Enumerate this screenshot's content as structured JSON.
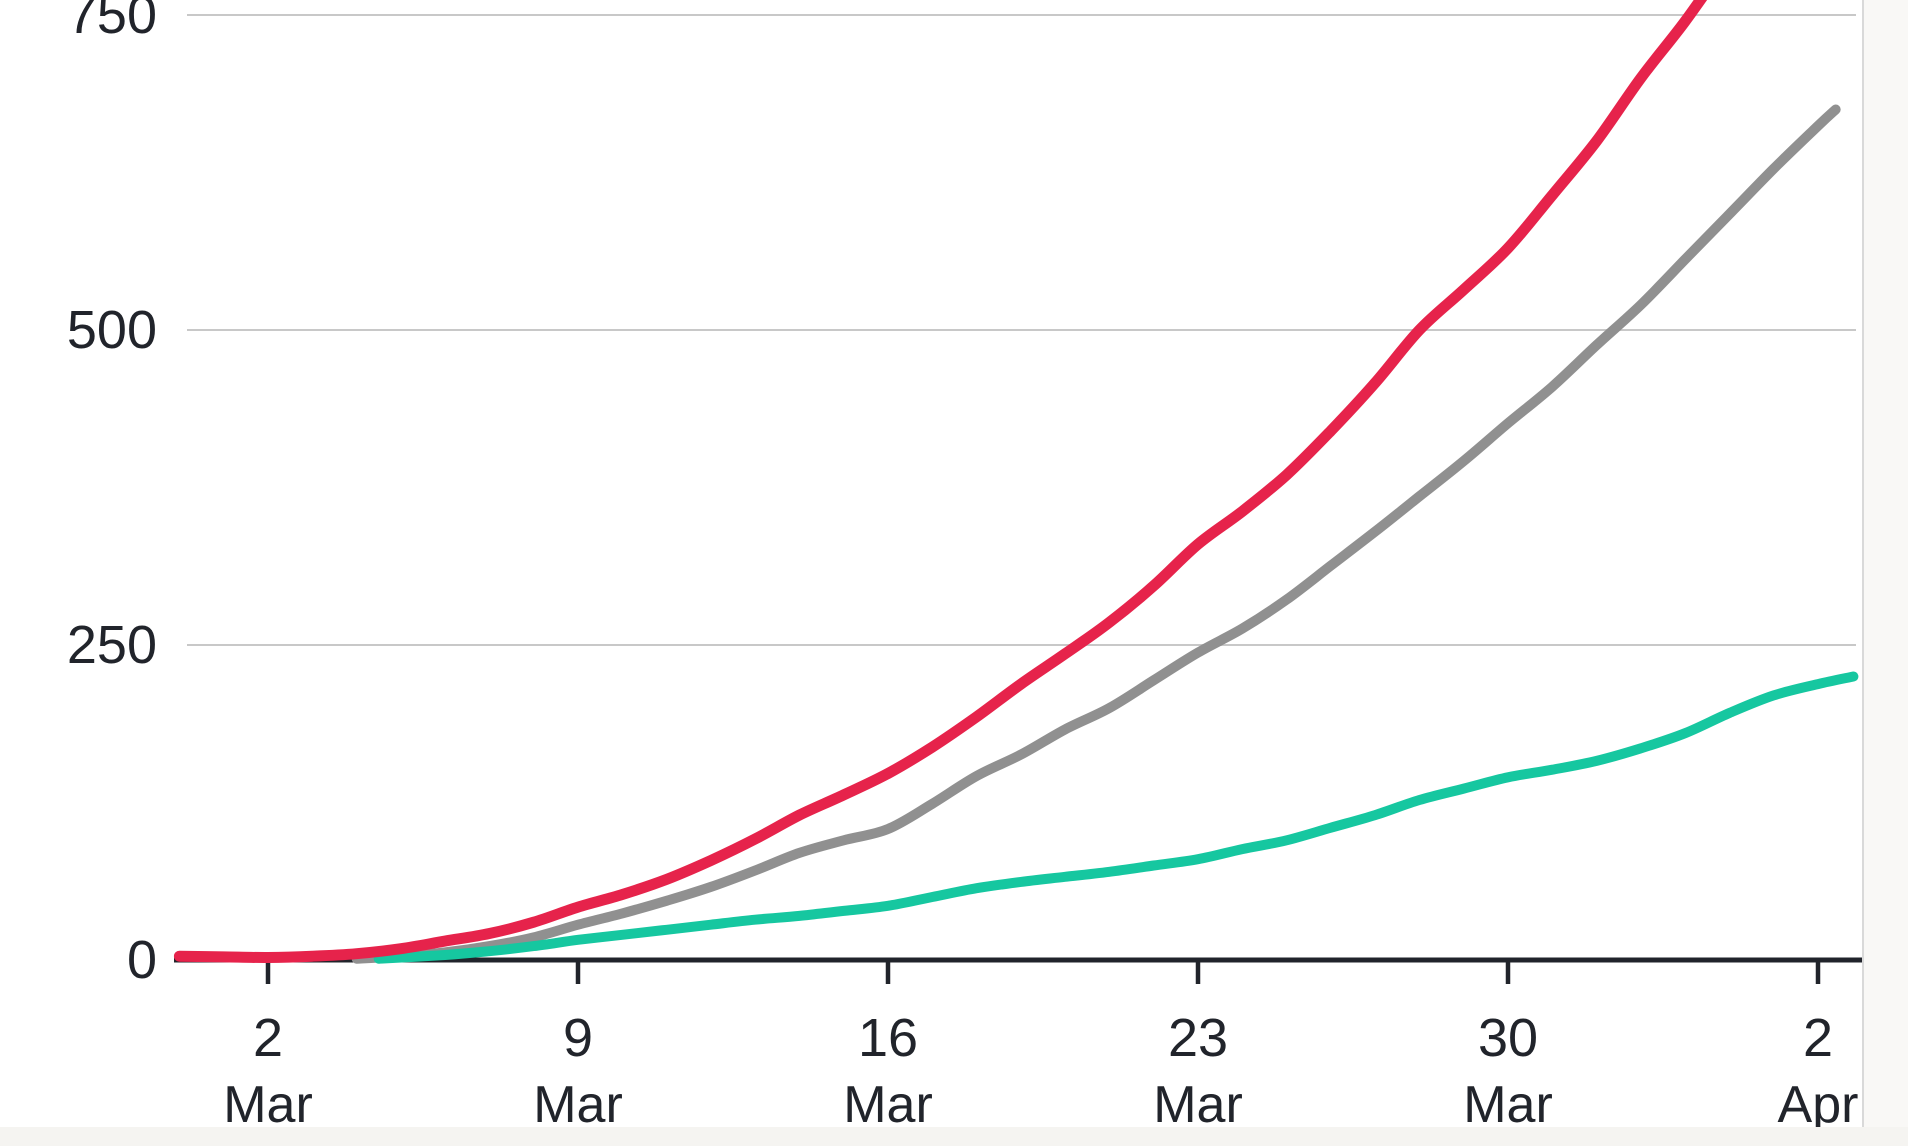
{
  "page": {
    "background_color": "#ffffff",
    "bottom_strip_color": "#f5f4f1",
    "right_strip_color": "#f9f8f6",
    "right_strip_border_color": "#d9d9d9"
  },
  "chart_data": {
    "type": "line",
    "title": "",
    "xlabel": "",
    "ylabel": "",
    "grid": "horizontal",
    "legend": "none (cropped out of view)",
    "x_axis": {
      "unit": "days since first labeled tick (2 Mar)",
      "tick_unit_positions": [
        0,
        7,
        14,
        21,
        28,
        35
      ],
      "tick_labels": [
        {
          "day": "2",
          "month": "Mar"
        },
        {
          "day": "9",
          "month": "Mar"
        },
        {
          "day": "16",
          "month": "Mar"
        },
        {
          "day": "23",
          "month": "Mar"
        },
        {
          "day": "30",
          "month": "Mar"
        },
        {
          "day": "2",
          "month": "Apr"
        }
      ]
    },
    "y_axis": {
      "tick_values": [
        0,
        250,
        500,
        750
      ],
      "tick_labels": [
        "0",
        "250",
        "500",
        "750"
      ],
      "visible_value_range": [
        0,
        762
      ]
    },
    "series": [
      {
        "name": "grey",
        "color": "#909090",
        "stroke_width": 10,
        "points": [
          [
            2,
            1
          ],
          [
            3,
            3
          ],
          [
            4,
            6
          ],
          [
            5,
            11
          ],
          [
            6,
            18
          ],
          [
            7,
            28
          ],
          [
            8,
            37
          ],
          [
            9,
            47
          ],
          [
            10,
            58
          ],
          [
            11,
            71
          ],
          [
            12,
            85
          ],
          [
            13,
            95
          ],
          [
            14,
            104
          ],
          [
            15,
            124
          ],
          [
            16,
            146
          ],
          [
            17,
            163
          ],
          [
            18,
            183
          ],
          [
            19,
            200
          ],
          [
            20,
            222
          ],
          [
            21,
            244
          ],
          [
            22,
            263
          ],
          [
            23,
            286
          ],
          [
            24,
            313
          ],
          [
            25,
            340
          ],
          [
            26,
            368
          ],
          [
            27,
            396
          ],
          [
            28,
            426
          ],
          [
            29,
            455
          ],
          [
            30,
            488
          ],
          [
            31,
            520
          ],
          [
            32,
            556
          ],
          [
            33,
            592
          ],
          [
            34,
            628
          ],
          [
            35,
            662
          ],
          [
            35.4,
            675
          ]
        ]
      },
      {
        "name": "teal",
        "color": "#16c7a0",
        "stroke_width": 10,
        "points": [
          [
            2.5,
            1
          ],
          [
            4,
            4
          ],
          [
            5,
            7
          ],
          [
            6,
            11
          ],
          [
            7,
            16
          ],
          [
            8,
            20
          ],
          [
            9,
            24
          ],
          [
            10,
            28
          ],
          [
            11,
            32
          ],
          [
            12,
            35
          ],
          [
            13,
            39
          ],
          [
            14,
            43
          ],
          [
            15,
            50
          ],
          [
            16,
            57
          ],
          [
            17,
            62
          ],
          [
            18,
            66
          ],
          [
            19,
            70
          ],
          [
            20,
            75
          ],
          [
            21,
            80
          ],
          [
            22,
            88
          ],
          [
            23,
            95
          ],
          [
            24,
            105
          ],
          [
            25,
            115
          ],
          [
            26,
            127
          ],
          [
            27,
            136
          ],
          [
            28,
            145
          ],
          [
            29,
            151
          ],
          [
            30,
            158
          ],
          [
            31,
            168
          ],
          [
            32,
            180
          ],
          [
            33,
            196
          ],
          [
            34,
            210
          ],
          [
            35,
            219
          ],
          [
            35.8,
            225
          ]
        ]
      },
      {
        "name": "red",
        "color": "#e6234b",
        "stroke_width": 11,
        "points": [
          [
            -2,
            3
          ],
          [
            -1,
            2.5
          ],
          [
            0,
            2
          ],
          [
            1,
            3
          ],
          [
            2,
            5
          ],
          [
            3,
            9
          ],
          [
            4,
            15
          ],
          [
            5,
            21
          ],
          [
            6,
            30
          ],
          [
            7,
            42
          ],
          [
            8,
            52
          ],
          [
            9,
            64
          ],
          [
            10,
            79
          ],
          [
            11,
            96
          ],
          [
            12,
            115
          ],
          [
            13,
            131
          ],
          [
            14,
            148
          ],
          [
            15,
            169
          ],
          [
            16,
            193
          ],
          [
            17,
            219
          ],
          [
            18,
            243
          ],
          [
            19,
            268
          ],
          [
            20,
            297
          ],
          [
            21,
            330
          ],
          [
            22,
            356
          ],
          [
            23,
            385
          ],
          [
            24,
            420
          ],
          [
            25,
            458
          ],
          [
            26,
            500
          ],
          [
            27,
            532
          ],
          [
            28,
            565
          ],
          [
            29,
            607
          ],
          [
            30,
            650
          ],
          [
            31,
            700
          ],
          [
            32,
            745
          ],
          [
            33,
            795
          ]
        ]
      }
    ],
    "style": {
      "gridline_color": "#c8c8c8",
      "axis_color": "#21242b",
      "tick_color": "#21242b",
      "label_color": "#21242b"
    }
  }
}
